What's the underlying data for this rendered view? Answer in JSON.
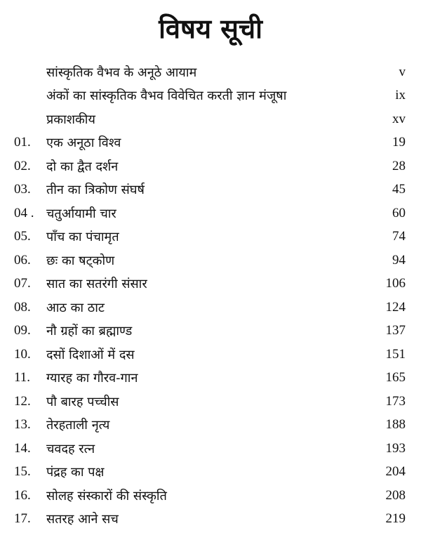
{
  "title": "विषय सूची",
  "entries": [
    {
      "num": "",
      "label": "सांस्कृतिक वैभव के अनूठे आयाम",
      "page": "v"
    },
    {
      "num": "",
      "label": "अंकों का सांस्कृतिक वैभव विवेचित करती ज्ञान मंजूषा",
      "page": "ix"
    },
    {
      "num": "",
      "label": "प्रकाशकीय",
      "page": "xv"
    },
    {
      "num": "01.",
      "label": "एक अनूठा विश्व",
      "page": "19"
    },
    {
      "num": "02.",
      "label": "दो का द्वैत दर्शन",
      "page": "28"
    },
    {
      "num": "03.",
      "label": "तीन का त्रिकोण संघर्ष",
      "page": "45"
    },
    {
      "num": "04 .",
      "label": "चतुर्आयामी चार",
      "page": "60"
    },
    {
      "num": "05.",
      "label": "पाँच का पंचामृत",
      "page": "74"
    },
    {
      "num": "06.",
      "label": "छः का षट्कोण",
      "page": "94"
    },
    {
      "num": "07.",
      "label": "सात का सतरंगी संसार",
      "page": "106"
    },
    {
      "num": "08.",
      "label": "आठ का ठाट",
      "page": "124"
    },
    {
      "num": "09.",
      "label": "नौ ग्रहों का ब्रह्माण्ड",
      "page": "137"
    },
    {
      "num": "10.",
      "label": "दसों दिशाओं में दस",
      "page": "151"
    },
    {
      "num": "11.",
      "label": "ग्यारह का गौरव-गान",
      "page": "165"
    },
    {
      "num": "12.",
      "label": "पौ बारह पच्चीस",
      "page": "173"
    },
    {
      "num": "13.",
      "label": "तेरहताली नृत्य",
      "page": "188"
    },
    {
      "num": "14.",
      "label": "चवदह रत्न",
      "page": "193"
    },
    {
      "num": "15.",
      "label": "पंद्रह का पक्ष",
      "page": "204"
    },
    {
      "num": "16.",
      "label": "सोलह संस्कारों की संस्कृति",
      "page": "208"
    },
    {
      "num": "17.",
      "label": "सतरह आने सच",
      "page": "219"
    }
  ]
}
